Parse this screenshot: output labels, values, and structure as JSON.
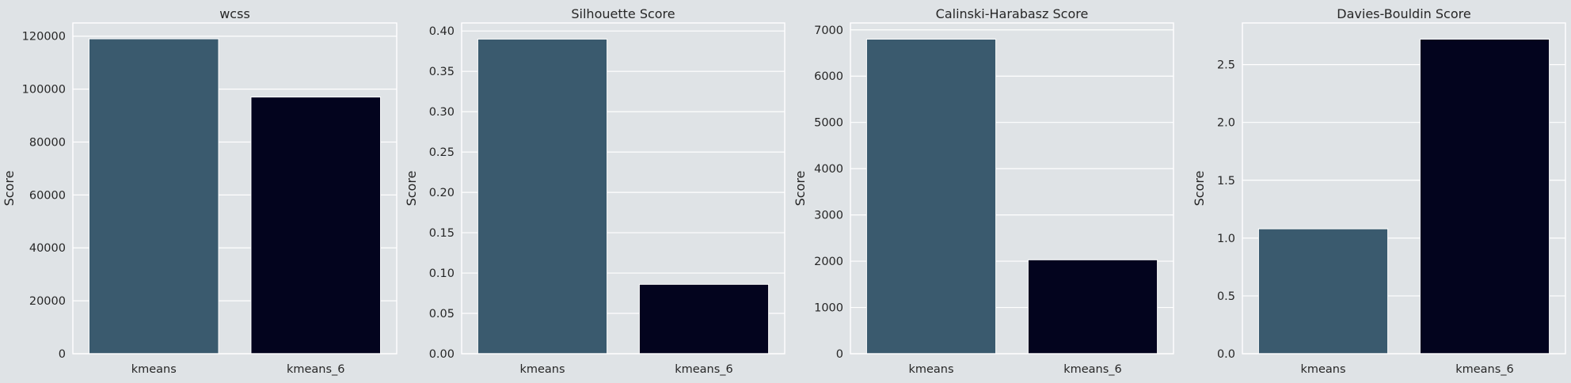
{
  "palette": {
    "background": "#dfe3e6",
    "plot_area": "#dfe3e6",
    "grid": "#ffffff",
    "bar_kmeans": "#3a5a6e",
    "bar_kmeans_6": "#03041e",
    "text": "#262626"
  },
  "chart_data": [
    {
      "type": "bar",
      "title": "wcss",
      "ylabel": "Score",
      "xlabel": "",
      "categories": [
        "kmeans",
        "kmeans_6"
      ],
      "values": [
        119000,
        97000
      ],
      "ylim": [
        0,
        125000
      ],
      "yticks": [
        0,
        20000,
        40000,
        60000,
        80000,
        100000,
        120000
      ],
      "ytick_labels": [
        "0",
        "20000",
        "40000",
        "60000",
        "80000",
        "100000",
        "120000"
      ],
      "grid": true
    },
    {
      "type": "bar",
      "title": "Silhouette Score",
      "ylabel": "Score",
      "xlabel": "",
      "categories": [
        "kmeans",
        "kmeans_6"
      ],
      "values": [
        0.39,
        0.086
      ],
      "ylim": [
        0,
        0.41
      ],
      "yticks": [
        0,
        0.05,
        0.1,
        0.15,
        0.2,
        0.25,
        0.3,
        0.35,
        0.4
      ],
      "ytick_labels": [
        "0.00",
        "0.05",
        "0.10",
        "0.15",
        "0.20",
        "0.25",
        "0.30",
        "0.35",
        "0.40"
      ],
      "grid": true
    },
    {
      "type": "bar",
      "title": "Calinski-Harabasz Score",
      "ylabel": "Score",
      "xlabel": "",
      "categories": [
        "kmeans",
        "kmeans_6"
      ],
      "values": [
        6800,
        2030
      ],
      "ylim": [
        0,
        7150
      ],
      "yticks": [
        0,
        1000,
        2000,
        3000,
        4000,
        5000,
        6000,
        7000
      ],
      "ytick_labels": [
        "0",
        "1000",
        "2000",
        "3000",
        "4000",
        "5000",
        "6000",
        "7000"
      ],
      "grid": true
    },
    {
      "type": "bar",
      "title": "Davies-Bouldin Score",
      "ylabel": "Score",
      "xlabel": "",
      "categories": [
        "kmeans",
        "kmeans_6"
      ],
      "values": [
        1.08,
        2.72
      ],
      "ylim": [
        0,
        2.86
      ],
      "yticks": [
        0,
        0.5,
        1.0,
        1.5,
        2.0,
        2.5
      ],
      "ytick_labels": [
        "0.0",
        "0.5",
        "1.0",
        "1.5",
        "2.0",
        "2.5"
      ],
      "grid": true
    }
  ]
}
